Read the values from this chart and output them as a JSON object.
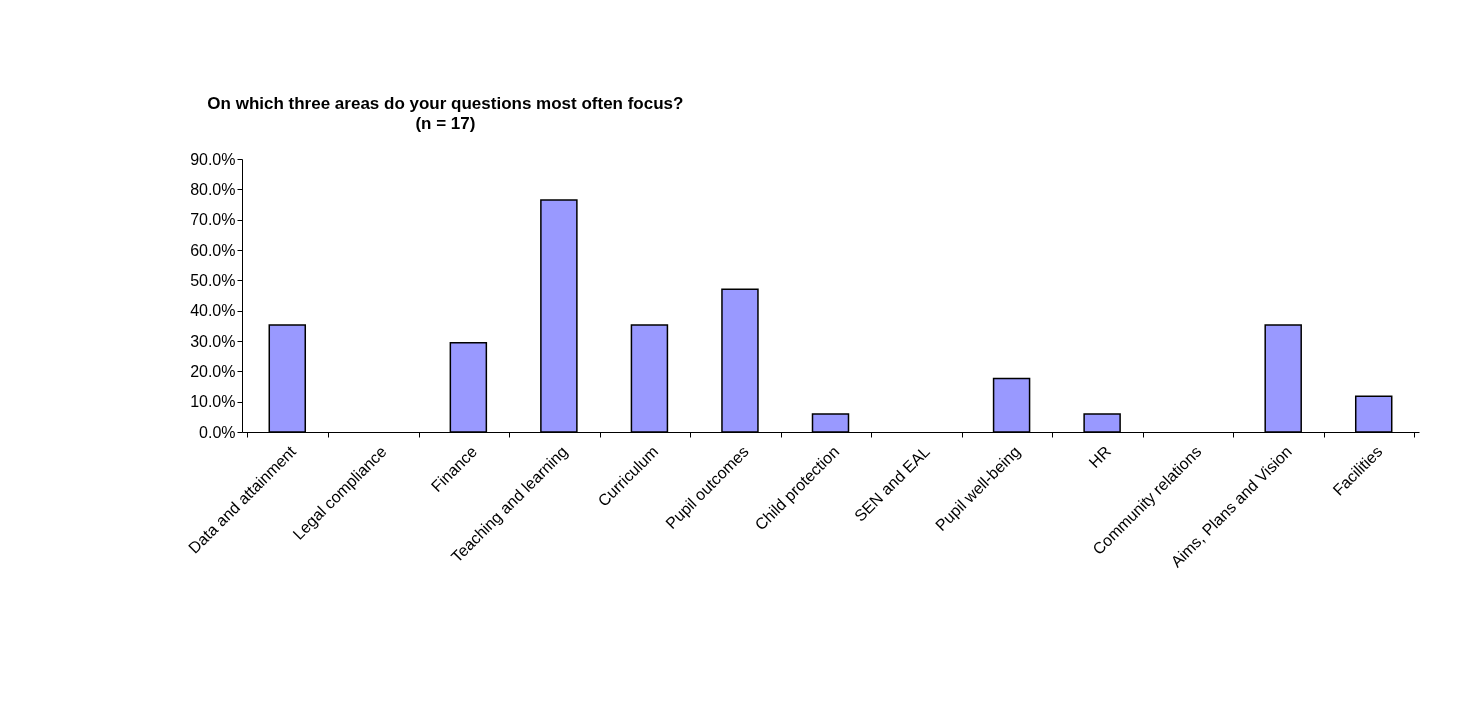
{
  "chart_data": {
    "type": "bar",
    "title": "On which three areas do your questions most often focus?",
    "subtitle": "(n = 17)",
    "categories": [
      "Data and attainment",
      "Legal compliance",
      "Finance",
      "Teaching and learning",
      "Curriculum",
      "Pupil outcomes",
      "Child protection",
      "SEN and EAL",
      "Pupil well-being",
      "HR",
      "Community relations",
      "Aims, Plans and Vision",
      "Facilities"
    ],
    "values": [
      35.3,
      0,
      29.4,
      76.5,
      35.3,
      47.1,
      5.9,
      0,
      17.6,
      5.9,
      0,
      35.3,
      11.8
    ],
    "color": "#9999ff",
    "ylim": [
      0,
      90
    ],
    "yticks": [
      {
        "value": 0,
        "label": "0.0%"
      },
      {
        "value": 10,
        "label": "10.0%"
      },
      {
        "value": 20,
        "label": "20.0%"
      },
      {
        "value": 30,
        "label": "30.0%"
      },
      {
        "value": 40,
        "label": "40.0%"
      },
      {
        "value": 50,
        "label": "50.0%"
      },
      {
        "value": 60,
        "label": "60.0%"
      },
      {
        "value": 70,
        "label": "70.0%"
      },
      {
        "value": 80,
        "label": "80.0%"
      },
      {
        "value": 90,
        "label": "90.0%"
      }
    ],
    "grid": false
  }
}
